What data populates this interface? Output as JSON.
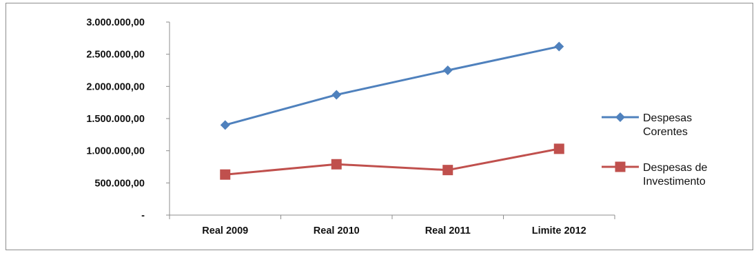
{
  "chart_data": {
    "type": "line",
    "title": "",
    "xlabel": "",
    "ylabel": "",
    "categories": [
      "Real 2009",
      "Real 2010",
      "Real 2011",
      "Limite 2012"
    ],
    "y_ticks": [
      "-",
      "500.000,00",
      "1.000.000,00",
      "1.500.000,00",
      "2.000.000,00",
      "2.500.000,00",
      "3.000.000,00"
    ],
    "ylim": [
      0,
      3000000
    ],
    "grid": false,
    "legend_position": "right",
    "series": [
      {
        "name_lines": [
          "Despesas",
          "Corentes"
        ],
        "values": [
          1400000,
          1870000,
          2250000,
          2620000
        ],
        "color": "#4f81bd",
        "marker": "diamond"
      },
      {
        "name_lines": [
          "Despesas de",
          "Investimento"
        ],
        "values": [
          630000,
          790000,
          700000,
          1030000
        ],
        "color": "#c0504d",
        "marker": "square"
      }
    ]
  }
}
